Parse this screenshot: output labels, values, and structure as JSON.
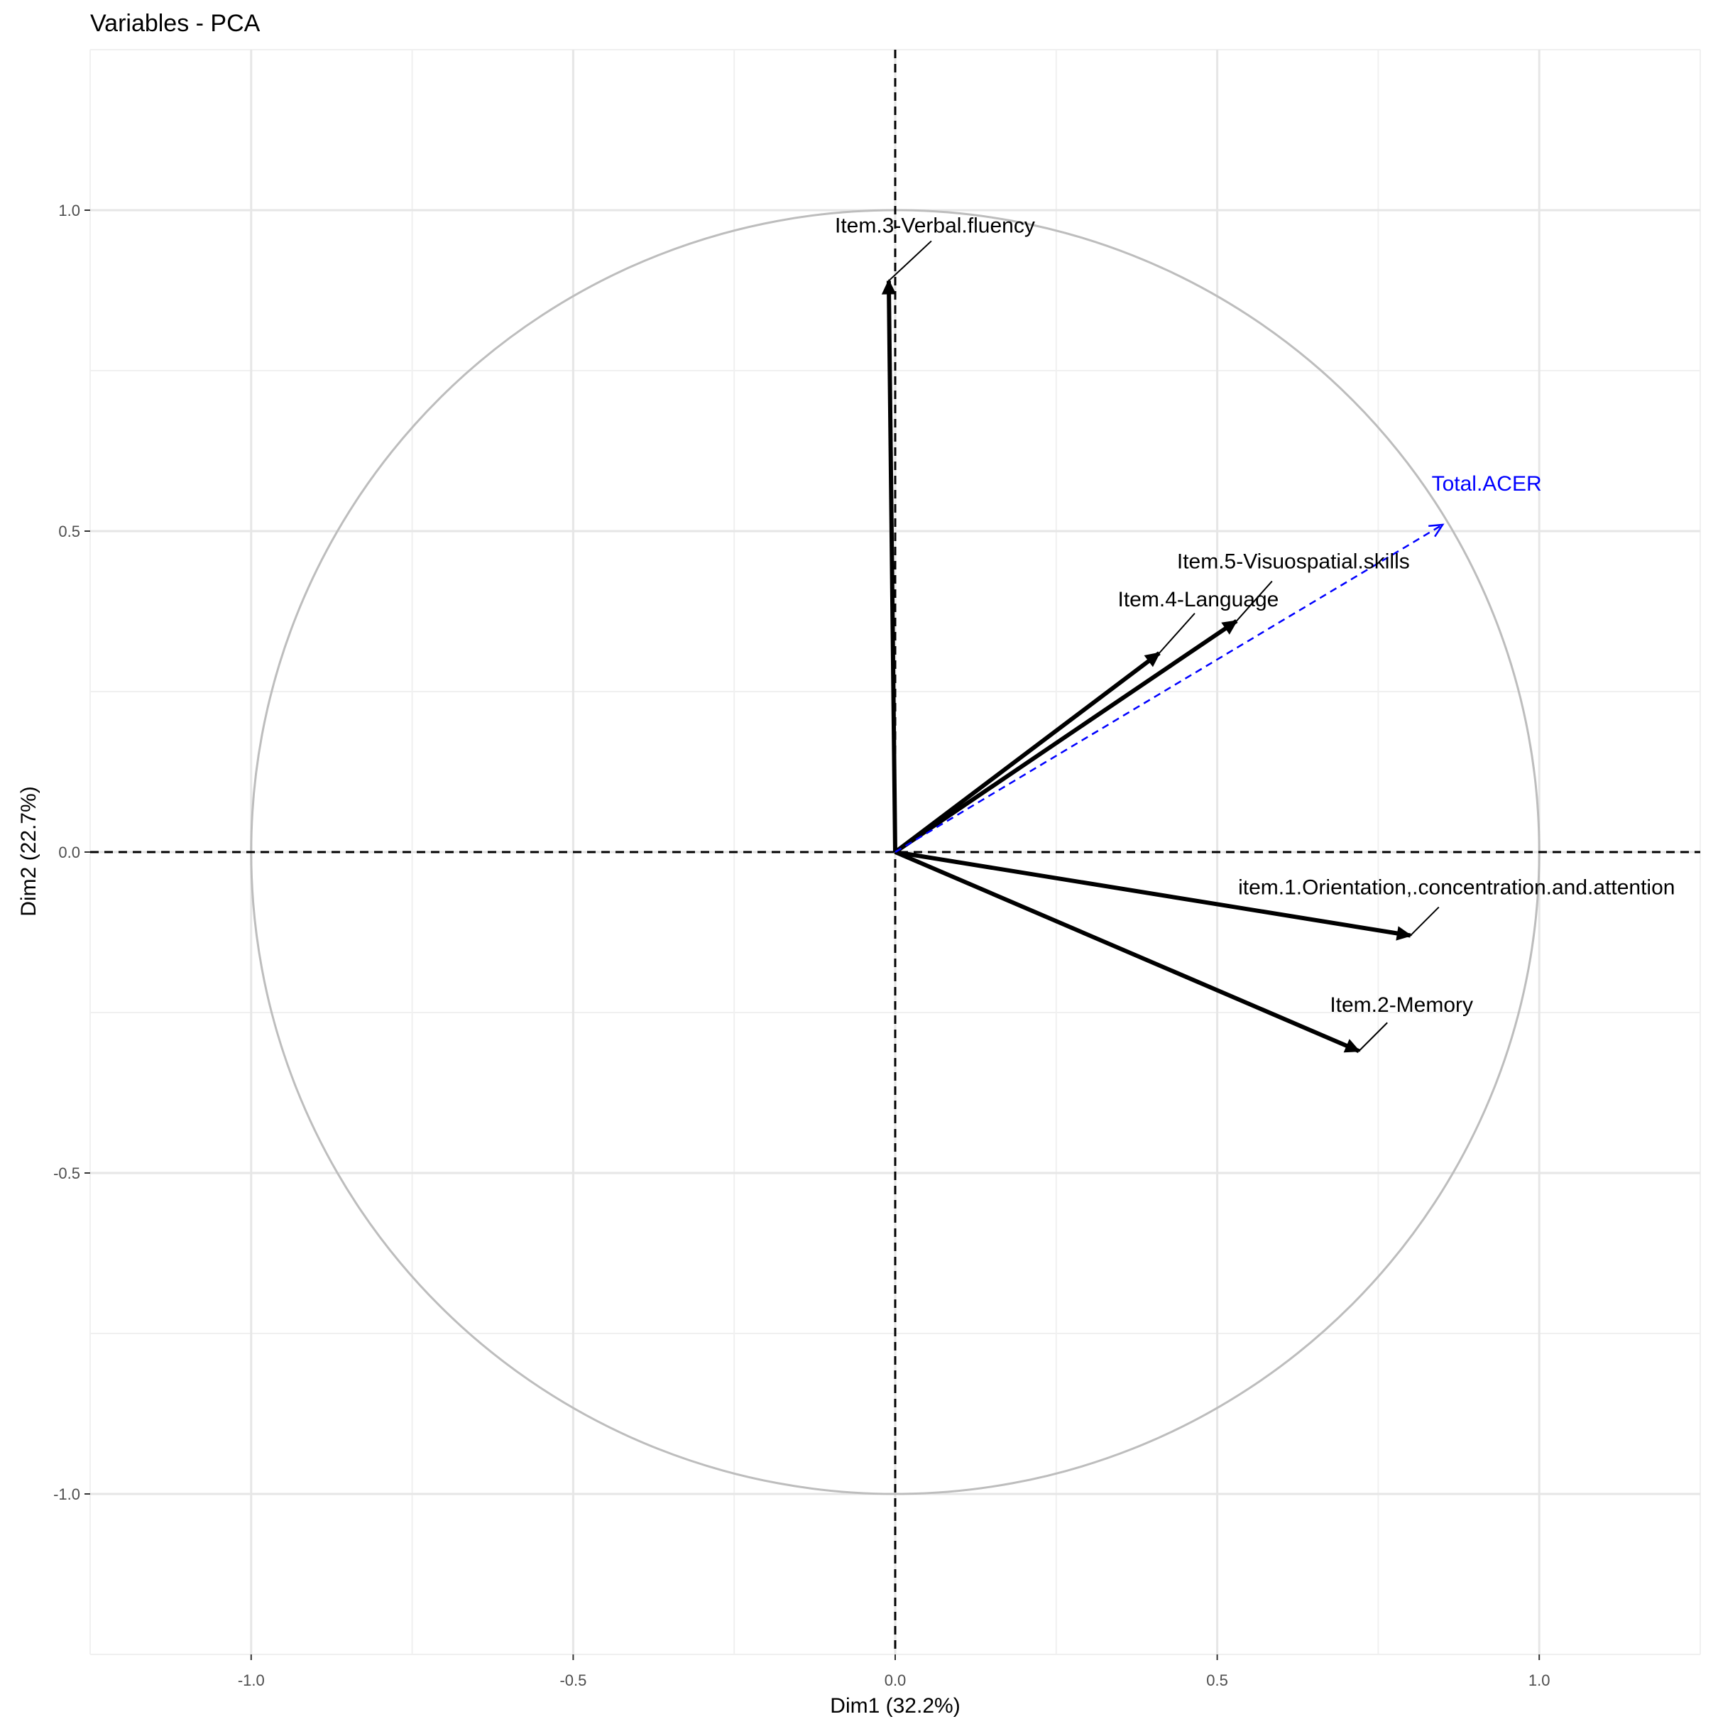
{
  "chart_data": {
    "type": "scatter",
    "title": "Variables - PCA",
    "xlabel": "Dim1 (32.2%)",
    "ylabel": "Dim2 (22.7%)",
    "xlim": [
      -1.25,
      1.25
    ],
    "ylim": [
      -1.25,
      1.25
    ],
    "x_ticks": [
      -1.0,
      -0.5,
      0.0,
      0.5,
      1.0
    ],
    "y_ticks": [
      -1.0,
      -0.5,
      0.0,
      0.5,
      1.0
    ],
    "x_tick_labels": [
      "-1.0",
      "-0.5",
      "0.0",
      "0.5",
      "1.0"
    ],
    "y_tick_labels": [
      "-1.0",
      "-0.5",
      "0.0",
      "0.5",
      "1.0"
    ],
    "grid": true,
    "correlation_circle": true,
    "variables": [
      {
        "label": "Item.3-Verbal.fluency",
        "x": -0.01,
        "y": 0.89,
        "color": "#000000"
      },
      {
        "label": "Item.4-Language",
        "x": 0.41,
        "y": 0.31,
        "color": "#000000"
      },
      {
        "label": "Item.5-Visuospatial.skills",
        "x": 0.53,
        "y": 0.36,
        "color": "#000000"
      },
      {
        "label": "item.1.Orientation,.concentration.and.attention",
        "x": 0.8,
        "y": -0.13,
        "color": "#000000"
      },
      {
        "label": "Item.2-Memory",
        "x": 0.72,
        "y": -0.31,
        "color": "#000000"
      }
    ],
    "supplementary": [
      {
        "label": "Total.ACER",
        "x": 0.85,
        "y": 0.51,
        "color": "#0000ff"
      }
    ]
  }
}
